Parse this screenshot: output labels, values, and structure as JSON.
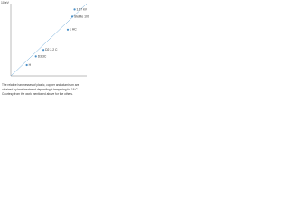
{
  "chart_data": {
    "type": "scatter",
    "y_label": "10 eV",
    "x": [
      84,
      81,
      75,
      43,
      33,
      21
    ],
    "values": [
      92,
      82,
      64,
      36,
      27,
      15
    ],
    "labels": [
      "1.27 kV",
      "Stellite 100",
      "1 HC",
      "D2 2.2 C",
      "D3 3C",
      "H"
    ],
    "color": "#4a90c8",
    "trend": {
      "x": [
        0,
        100
      ],
      "values": [
        0,
        100
      ],
      "color": "#6aa8d8"
    },
    "xlim": [
      0,
      100
    ],
    "ylim": [
      0,
      100
    ],
    "caption": [
      "The relative hardnesses of plastic, copper and aluminum are",
      "obtained by heat treatment depending + tempering for 16 C.",
      "Courtesy from the work mentioned above for the others."
    ]
  }
}
